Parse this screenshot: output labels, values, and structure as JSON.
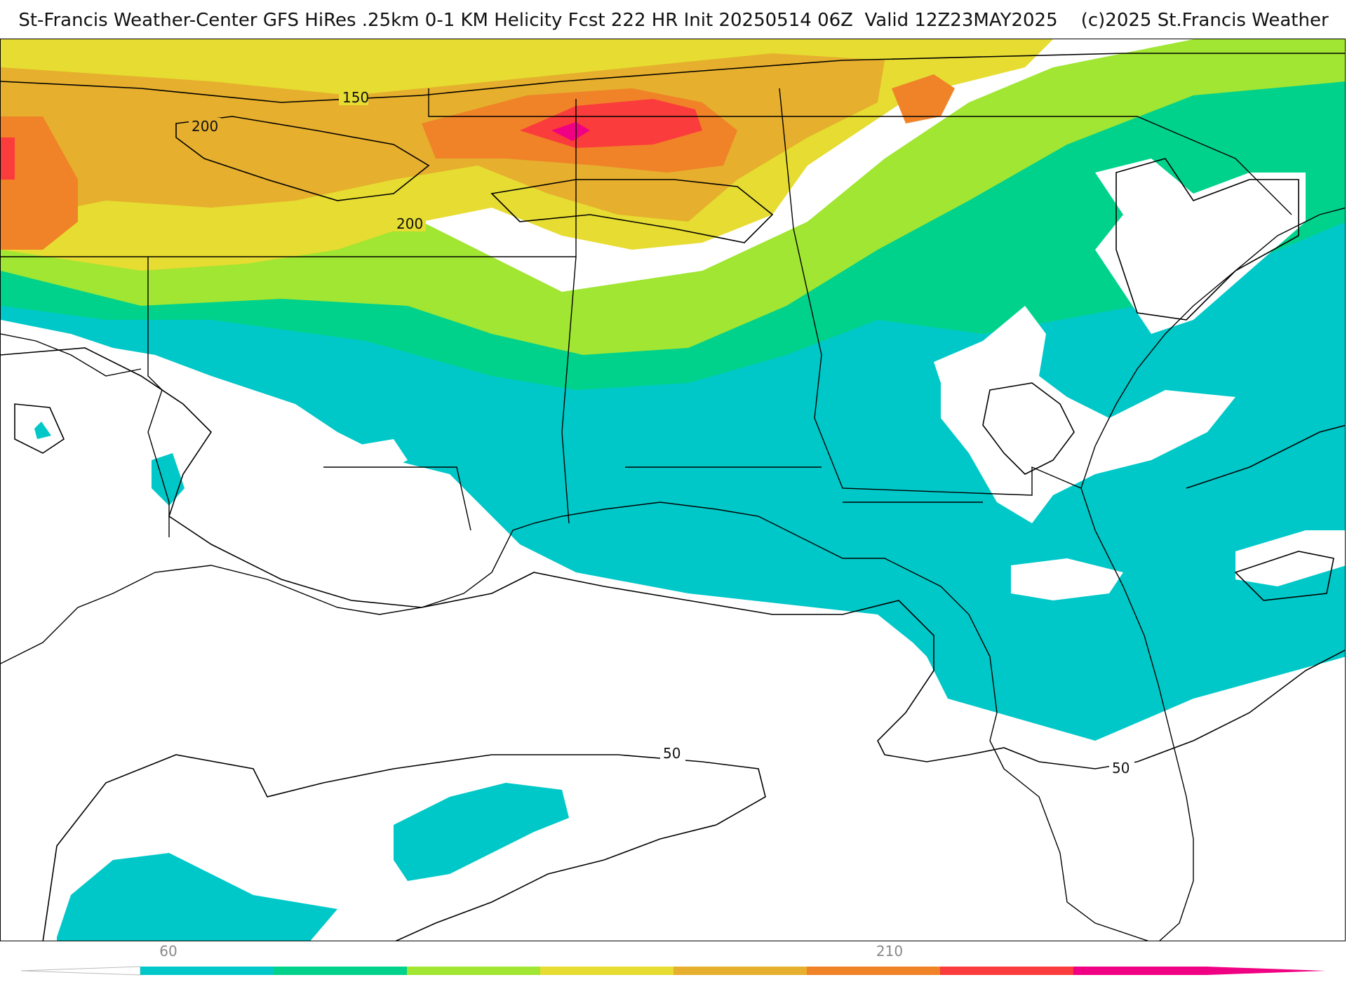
{
  "header": {
    "title": "St-Francis Weather-Center GFS HiRes .25km 0-1 KM Helicity Fcst 222 HR Init 20250514 06Z  Valid 12Z23MAY2025    (c)2025 St.Francis Weather"
  },
  "map": {
    "contour_labels": [
      "150",
      "200",
      "200",
      "50",
      "50"
    ]
  },
  "colorbar": {
    "tick_labels": [
      "60",
      "210"
    ],
    "colors": [
      "#00c8c8",
      "#00d28c",
      "#a0e632",
      "#e6dc32",
      "#e6af2d",
      "#f08228",
      "#fa3c3c",
      "#f00082"
    ]
  }
}
